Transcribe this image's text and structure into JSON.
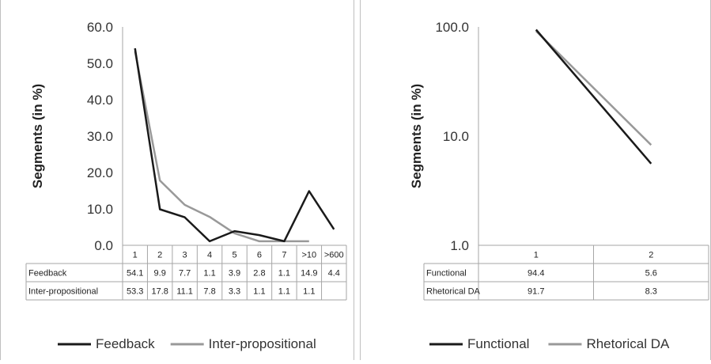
{
  "chart_data": [
    {
      "type": "line",
      "ylabel": "Segments (in %)",
      "ylim": [
        0,
        60
      ],
      "yticks": [
        "0.0",
        "10.0",
        "20.0",
        "30.0",
        "40.0",
        "50.0",
        "60.0"
      ],
      "categories": [
        "1",
        "2",
        "3",
        "4",
        "5",
        "6",
        "7",
        ">10",
        ">600"
      ],
      "series": [
        {
          "name": "Feedback",
          "color": "#1a1a1a",
          "values": [
            54.1,
            9.9,
            7.7,
            1.1,
            3.9,
            2.8,
            1.1,
            14.9,
            4.4
          ],
          "labels": [
            "54.1",
            "9.9",
            "7.7",
            "1.1",
            "3.9",
            "2.8",
            "1.1",
            "14.9",
            "4.4"
          ]
        },
        {
          "name": "Inter-propositional",
          "color": "#999999",
          "values": [
            53.3,
            17.8,
            11.1,
            7.8,
            3.3,
            1.1,
            1.1,
            1.1,
            null
          ],
          "labels": [
            "53.3",
            "17.8",
            "11.1",
            "7.8",
            "3.3",
            "1.1",
            "1.1",
            "1.1",
            ""
          ]
        }
      ],
      "legend_position": "bottom",
      "grid": false,
      "data_table": true
    },
    {
      "type": "line",
      "ylabel": "Segments (in %)",
      "yscale": "log",
      "ylim": [
        1,
        100
      ],
      "yticks": [
        "1.0",
        "10.0",
        "100.0"
      ],
      "categories": [
        "1",
        "2"
      ],
      "series": [
        {
          "name": "Functional",
          "color": "#1a1a1a",
          "values": [
            94.4,
            5.6
          ],
          "labels": [
            "94.4",
            "5.6"
          ]
        },
        {
          "name": "Rhetorical DA",
          "color": "#999999",
          "values": [
            91.7,
            8.3
          ],
          "labels": [
            "91.7",
            "8.3"
          ]
        }
      ],
      "legend_position": "bottom",
      "grid": false,
      "data_table": true
    }
  ]
}
